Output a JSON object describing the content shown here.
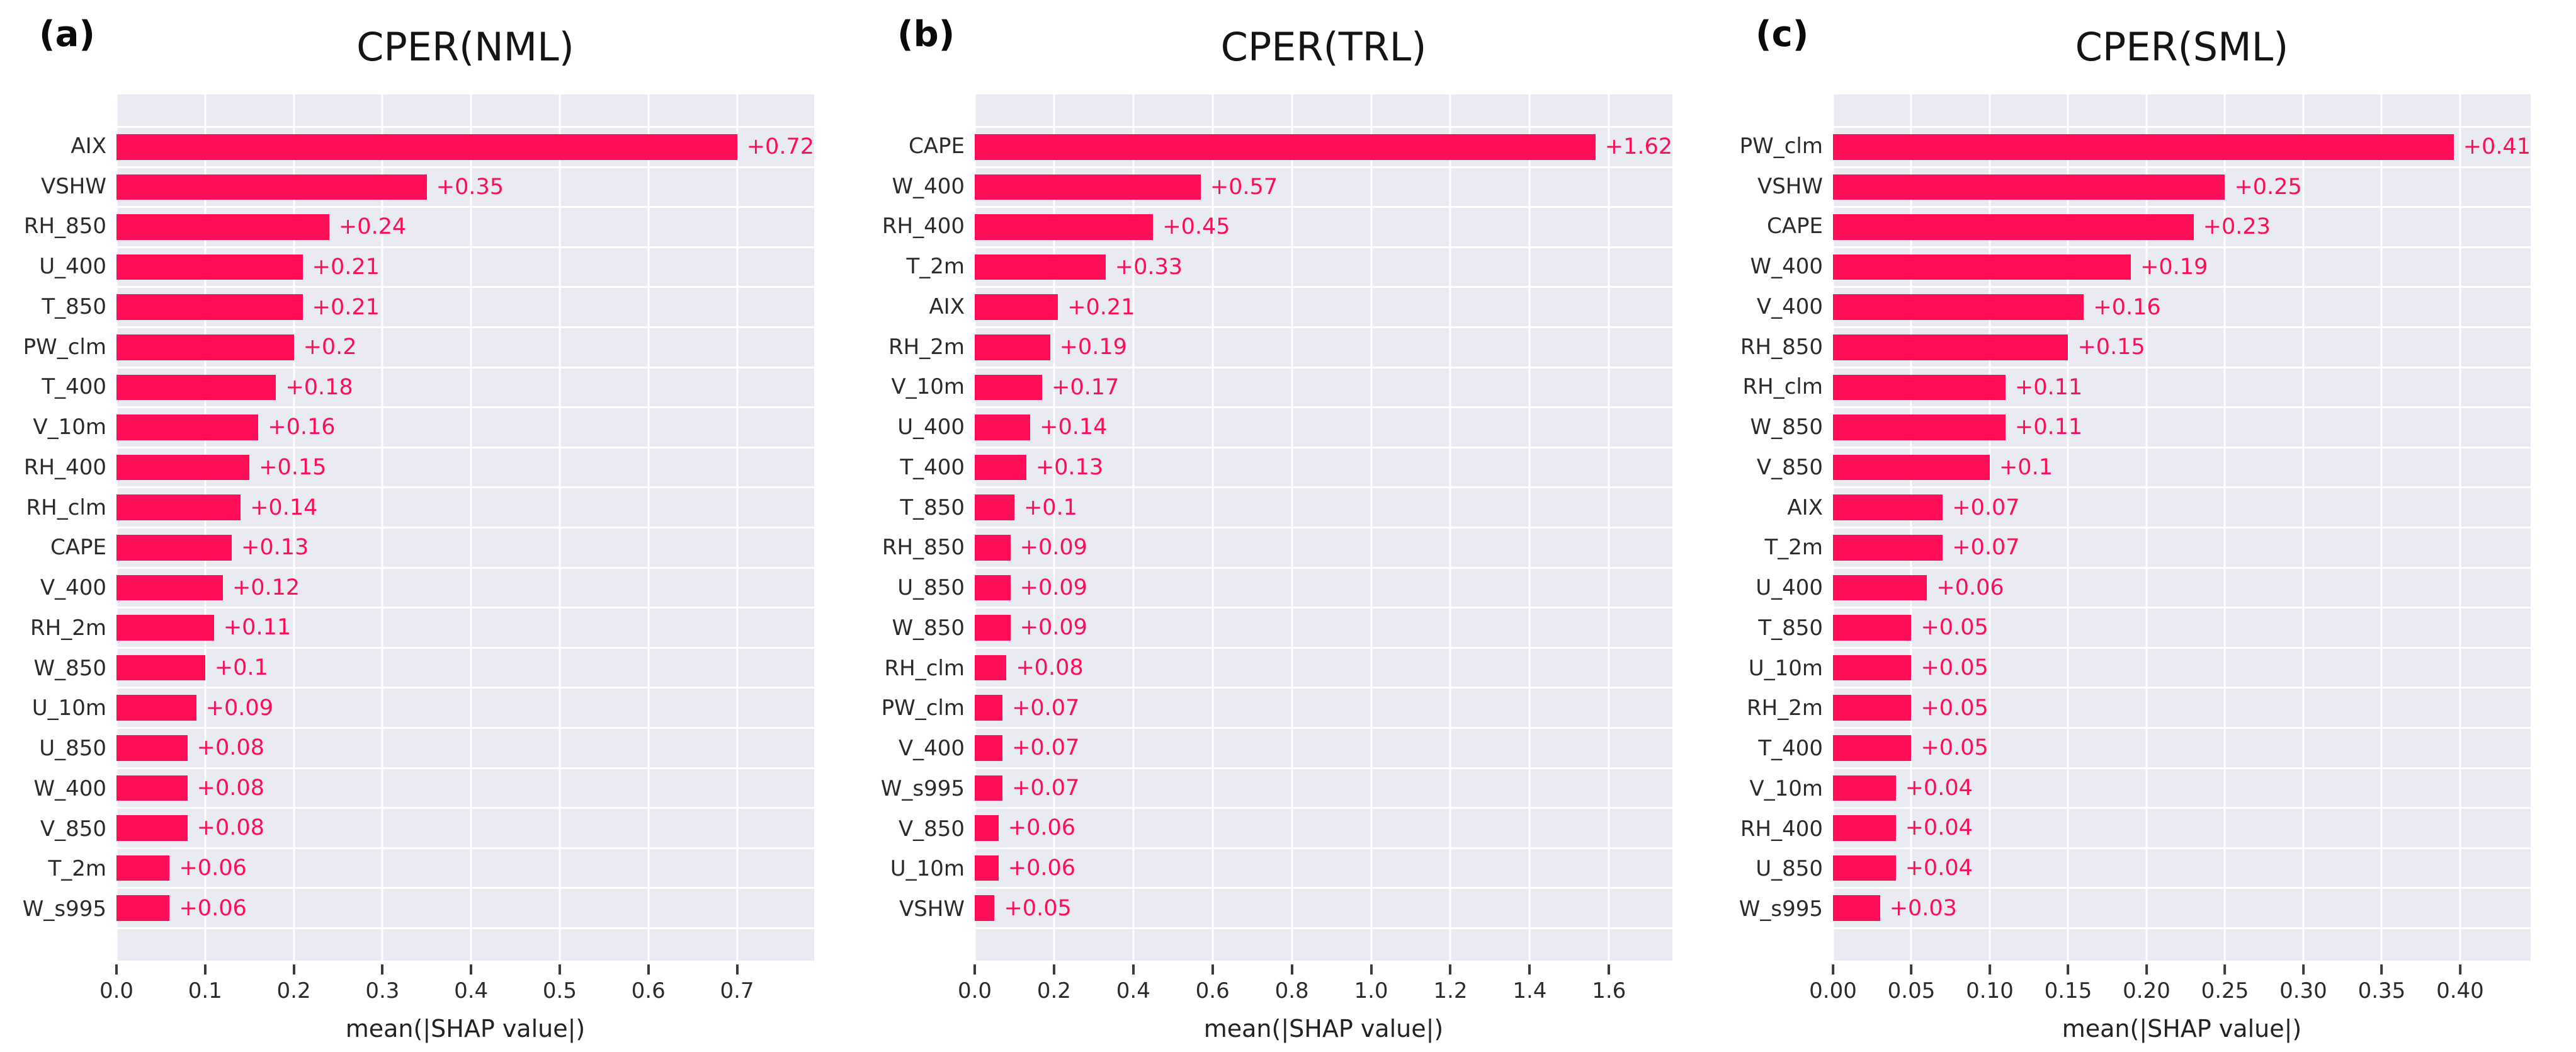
{
  "colors": {
    "bar": "#FF0D57",
    "plot_background": "#E9EAF2",
    "gridline": "#FFFFFF",
    "title_text": "#141414",
    "tick_text": "#2B2B2B"
  },
  "chart_data": [
    {
      "type": "bar",
      "orientation": "horizontal",
      "panel_tag": "(a)",
      "title": "CPER(NML)",
      "xlabel": "mean(|SHAP value|)",
      "xlim": [
        0,
        0.787
      ],
      "xtick_values": [
        0.0,
        0.1,
        0.2,
        0.3,
        0.4,
        0.5,
        0.6,
        0.7
      ],
      "xtick_labels": [
        "0.0",
        "0.1",
        "0.2",
        "0.3",
        "0.4",
        "0.5",
        "0.6",
        "0.7"
      ],
      "grid": true,
      "categories": [
        "AIX",
        "VSHW",
        "RH_850",
        "U_400",
        "T_850",
        "PW_clm",
        "T_400",
        "V_10m",
        "RH_400",
        "RH_clm",
        "CAPE",
        "V_400",
        "RH_2m",
        "W_850",
        "U_10m",
        "U_850",
        "W_400",
        "V_850",
        "T_2m",
        "W_s995"
      ],
      "values": [
        0.72,
        0.35,
        0.24,
        0.21,
        0.21,
        0.2,
        0.18,
        0.16,
        0.15,
        0.14,
        0.13,
        0.12,
        0.11,
        0.1,
        0.09,
        0.08,
        0.08,
        0.08,
        0.06,
        0.06
      ],
      "value_labels": [
        "+0.72",
        "+0.35",
        "+0.24",
        "+0.21",
        "+0.21",
        "+0.2",
        "+0.18",
        "+0.16",
        "+0.15",
        "+0.14",
        "+0.13",
        "+0.12",
        "+0.11",
        "+0.1",
        "+0.09",
        "+0.08",
        "+0.08",
        "+0.08",
        "+0.06",
        "+0.06"
      ]
    },
    {
      "type": "bar",
      "orientation": "horizontal",
      "panel_tag": "(b)",
      "title": "CPER(TRL)",
      "xlabel": "mean(|SHAP value|)",
      "xlim": [
        0,
        1.76
      ],
      "xtick_values": [
        0.0,
        0.2,
        0.4,
        0.6,
        0.8,
        1.0,
        1.2,
        1.4,
        1.6
      ],
      "xtick_labels": [
        "0.0",
        "0.2",
        "0.4",
        "0.6",
        "0.8",
        "1.0",
        "1.2",
        "1.4",
        "1.6"
      ],
      "grid": true,
      "categories": [
        "CAPE",
        "W_400",
        "RH_400",
        "T_2m",
        "AIX",
        "RH_2m",
        "V_10m",
        "U_400",
        "T_400",
        "T_850",
        "RH_850",
        "U_850",
        "W_850",
        "RH_clm",
        "PW_clm",
        "V_400",
        "W_s995",
        "V_850",
        "U_10m",
        "VSHW"
      ],
      "values": [
        1.62,
        0.57,
        0.45,
        0.33,
        0.21,
        0.19,
        0.17,
        0.14,
        0.13,
        0.1,
        0.09,
        0.09,
        0.09,
        0.08,
        0.07,
        0.07,
        0.07,
        0.06,
        0.06,
        0.05
      ],
      "value_labels": [
        "+1.62",
        "+0.57",
        "+0.45",
        "+0.33",
        "+0.21",
        "+0.19",
        "+0.17",
        "+0.14",
        "+0.13",
        "+0.1",
        "+0.09",
        "+0.09",
        "+0.09",
        "+0.08",
        "+0.07",
        "+0.07",
        "+0.07",
        "+0.06",
        "+0.06",
        "+0.05"
      ]
    },
    {
      "type": "bar",
      "orientation": "horizontal",
      "panel_tag": "(c)",
      "title": "CPER(SML)",
      "xlabel": "mean(|SHAP value|)",
      "xlim": [
        0,
        0.445
      ],
      "xtick_values": [
        0.0,
        0.05,
        0.1,
        0.15,
        0.2,
        0.25,
        0.3,
        0.35,
        0.4
      ],
      "xtick_labels": [
        "0.00",
        "0.05",
        "0.10",
        "0.15",
        "0.20",
        "0.25",
        "0.30",
        "0.35",
        "0.40"
      ],
      "grid": true,
      "categories": [
        "PW_clm",
        "VSHW",
        "CAPE",
        "W_400",
        "V_400",
        "RH_850",
        "RH_clm",
        "W_850",
        "V_850",
        "AIX",
        "T_2m",
        "U_400",
        "T_850",
        "U_10m",
        "RH_2m",
        "T_400",
        "V_10m",
        "RH_400",
        "U_850",
        "W_s995"
      ],
      "values": [
        0.41,
        0.25,
        0.23,
        0.19,
        0.16,
        0.15,
        0.11,
        0.11,
        0.1,
        0.07,
        0.07,
        0.06,
        0.05,
        0.05,
        0.05,
        0.05,
        0.04,
        0.04,
        0.04,
        0.03
      ],
      "value_labels": [
        "+0.41",
        "+0.25",
        "+0.23",
        "+0.19",
        "+0.16",
        "+0.15",
        "+0.11",
        "+0.11",
        "+0.1",
        "+0.07",
        "+0.07",
        "+0.06",
        "+0.05",
        "+0.05",
        "+0.05",
        "+0.05",
        "+0.04",
        "+0.04",
        "+0.04",
        "+0.03"
      ]
    }
  ]
}
